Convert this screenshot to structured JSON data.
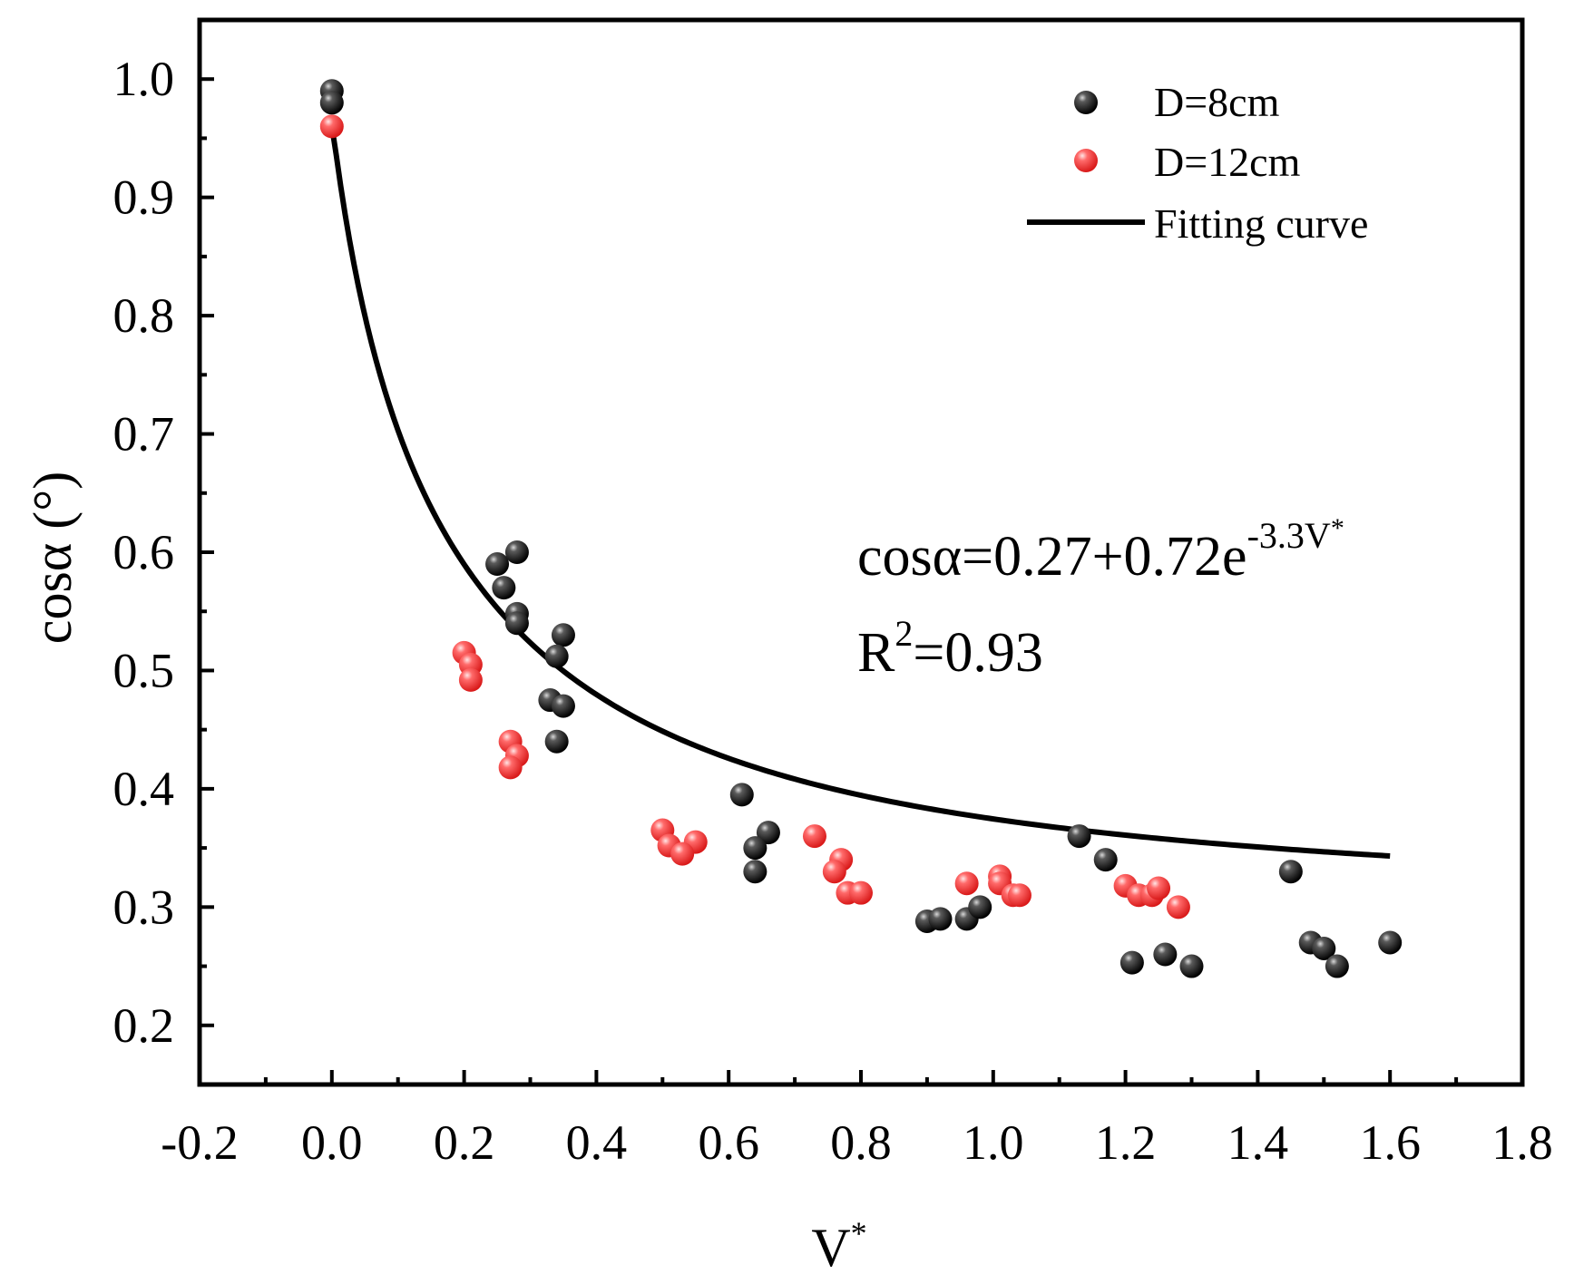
{
  "chart_data": {
    "type": "scatter",
    "xlabel": "V",
    "xlabel_sup": "*",
    "ylabel": "cosα (°)",
    "xlim": [
      -0.2,
      1.8
    ],
    "ylim": [
      0.15,
      1.05
    ],
    "xticks": [
      -0.2,
      0.0,
      0.2,
      0.4,
      0.6,
      0.8,
      1.0,
      1.2,
      1.4,
      1.6,
      1.8
    ],
    "yticks": [
      0.2,
      0.3,
      0.4,
      0.5,
      0.6,
      0.7,
      0.8,
      0.9,
      1.0
    ],
    "xtick_labels": [
      "-0.2",
      "0.0",
      "0.2",
      "0.4",
      "0.6",
      "0.8",
      "1.0",
      "1.2",
      "1.4",
      "1.6",
      "1.8"
    ],
    "ytick_labels": [
      "0.2",
      "0.3",
      "0.4",
      "0.5",
      "0.6",
      "0.7",
      "0.8",
      "0.9",
      "1.0"
    ],
    "grid": false,
    "legend_position": "top-right",
    "series": [
      {
        "name": "D=8cm",
        "marker": "sphere",
        "color": "#111111",
        "points": [
          [
            0.0,
            0.99
          ],
          [
            0.0,
            0.98
          ],
          [
            0.25,
            0.59
          ],
          [
            0.26,
            0.57
          ],
          [
            0.28,
            0.6
          ],
          [
            0.28,
            0.548
          ],
          [
            0.28,
            0.54
          ],
          [
            0.35,
            0.53
          ],
          [
            0.34,
            0.512
          ],
          [
            0.33,
            0.475
          ],
          [
            0.35,
            0.47
          ],
          [
            0.34,
            0.44
          ],
          [
            0.62,
            0.395
          ],
          [
            0.66,
            0.363
          ],
          [
            0.64,
            0.35
          ],
          [
            0.64,
            0.33
          ],
          [
            0.9,
            0.288
          ],
          [
            0.92,
            0.29
          ],
          [
            0.96,
            0.29
          ],
          [
            0.98,
            0.3
          ],
          [
            1.13,
            0.36
          ],
          [
            1.17,
            0.34
          ],
          [
            1.21,
            0.253
          ],
          [
            1.26,
            0.26
          ],
          [
            1.3,
            0.25
          ],
          [
            1.45,
            0.33
          ],
          [
            1.48,
            0.27
          ],
          [
            1.5,
            0.265
          ],
          [
            1.52,
            0.25
          ],
          [
            1.6,
            0.27
          ]
        ]
      },
      {
        "name": "D=12cm",
        "marker": "sphere",
        "color": "#ff4a4a",
        "points": [
          [
            0.0,
            0.96
          ],
          [
            0.2,
            0.515
          ],
          [
            0.21,
            0.505
          ],
          [
            0.21,
            0.492
          ],
          [
            0.27,
            0.44
          ],
          [
            0.28,
            0.428
          ],
          [
            0.27,
            0.418
          ],
          [
            0.5,
            0.365
          ],
          [
            0.51,
            0.352
          ],
          [
            0.55,
            0.355
          ],
          [
            0.53,
            0.345
          ],
          [
            0.73,
            0.36
          ],
          [
            0.77,
            0.34
          ],
          [
            0.76,
            0.33
          ],
          [
            0.78,
            0.312
          ],
          [
            0.8,
            0.312
          ],
          [
            0.96,
            0.32
          ],
          [
            1.01,
            0.326
          ],
          [
            1.01,
            0.32
          ],
          [
            1.03,
            0.31
          ],
          [
            1.04,
            0.31
          ],
          [
            1.2,
            0.318
          ],
          [
            1.22,
            0.31
          ],
          [
            1.24,
            0.31
          ],
          [
            1.25,
            0.316
          ],
          [
            1.28,
            0.3
          ]
        ]
      }
    ],
    "fit": {
      "name": "Fitting curve",
      "color": "#000000",
      "a": 0.27,
      "b": 0.72,
      "k": -3.3,
      "xrange": [
        0.0,
        1.6
      ]
    },
    "annotation": {
      "eq_prefix": "cosα=0.27+0.72e",
      "eq_exp": "-3.3V",
      "eq_exp_sup": "*",
      "r2_prefix": "R",
      "r2_sup": "2",
      "r2_value": "=0.93"
    }
  }
}
